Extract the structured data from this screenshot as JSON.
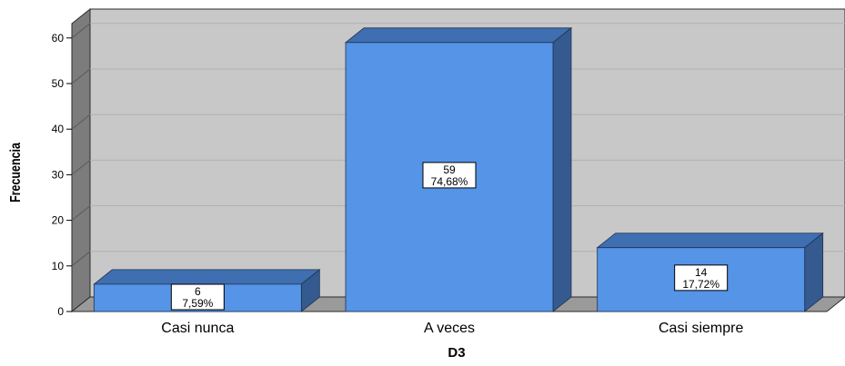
{
  "chart_data": {
    "type": "bar",
    "style": "3d",
    "categories": [
      "Casi nunca",
      "A veces",
      "Casi siempre"
    ],
    "values": [
      6,
      59,
      14
    ],
    "data_labels": [
      {
        "count": "6",
        "percent": "7,59%"
      },
      {
        "count": "59",
        "percent": "74,68%"
      },
      {
        "count": "14",
        "percent": "17,72%"
      }
    ],
    "xlabel": "D3",
    "ylabel": "Frecuencia",
    "ylim": [
      0,
      65
    ],
    "yticks": [
      0,
      10,
      20,
      30,
      40,
      50,
      60
    ],
    "grid": true,
    "colors": {
      "bar_front": "#5594e6",
      "bar_top": "#3f6fb0",
      "bar_side": "#345a8f",
      "plot_back": "#c8c8c8",
      "plot_side": "#7c7c7c",
      "plot_floor": "#9a9a9a"
    }
  }
}
